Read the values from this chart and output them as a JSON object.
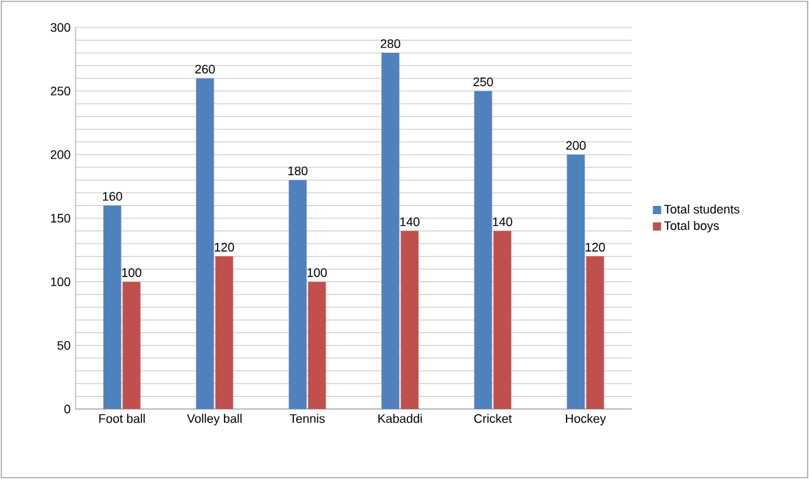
{
  "chart_data": {
    "type": "bar",
    "categories": [
      "Foot ball",
      "Volley ball",
      "Tennis",
      "Kabaddi",
      "Cricket",
      "Hockey"
    ],
    "series": [
      {
        "name": "Total students",
        "color": "#4f81bd",
        "values": [
          160,
          260,
          180,
          280,
          250,
          200
        ]
      },
      {
        "name": "Total boys",
        "color": "#c0504d",
        "values": [
          100,
          120,
          100,
          140,
          140,
          120
        ]
      }
    ],
    "ylim": [
      0,
      300
    ],
    "yticks": [
      0,
      50,
      100,
      150,
      200,
      250,
      300
    ],
    "grid": "y",
    "legend": "right",
    "data_labels": true
  }
}
